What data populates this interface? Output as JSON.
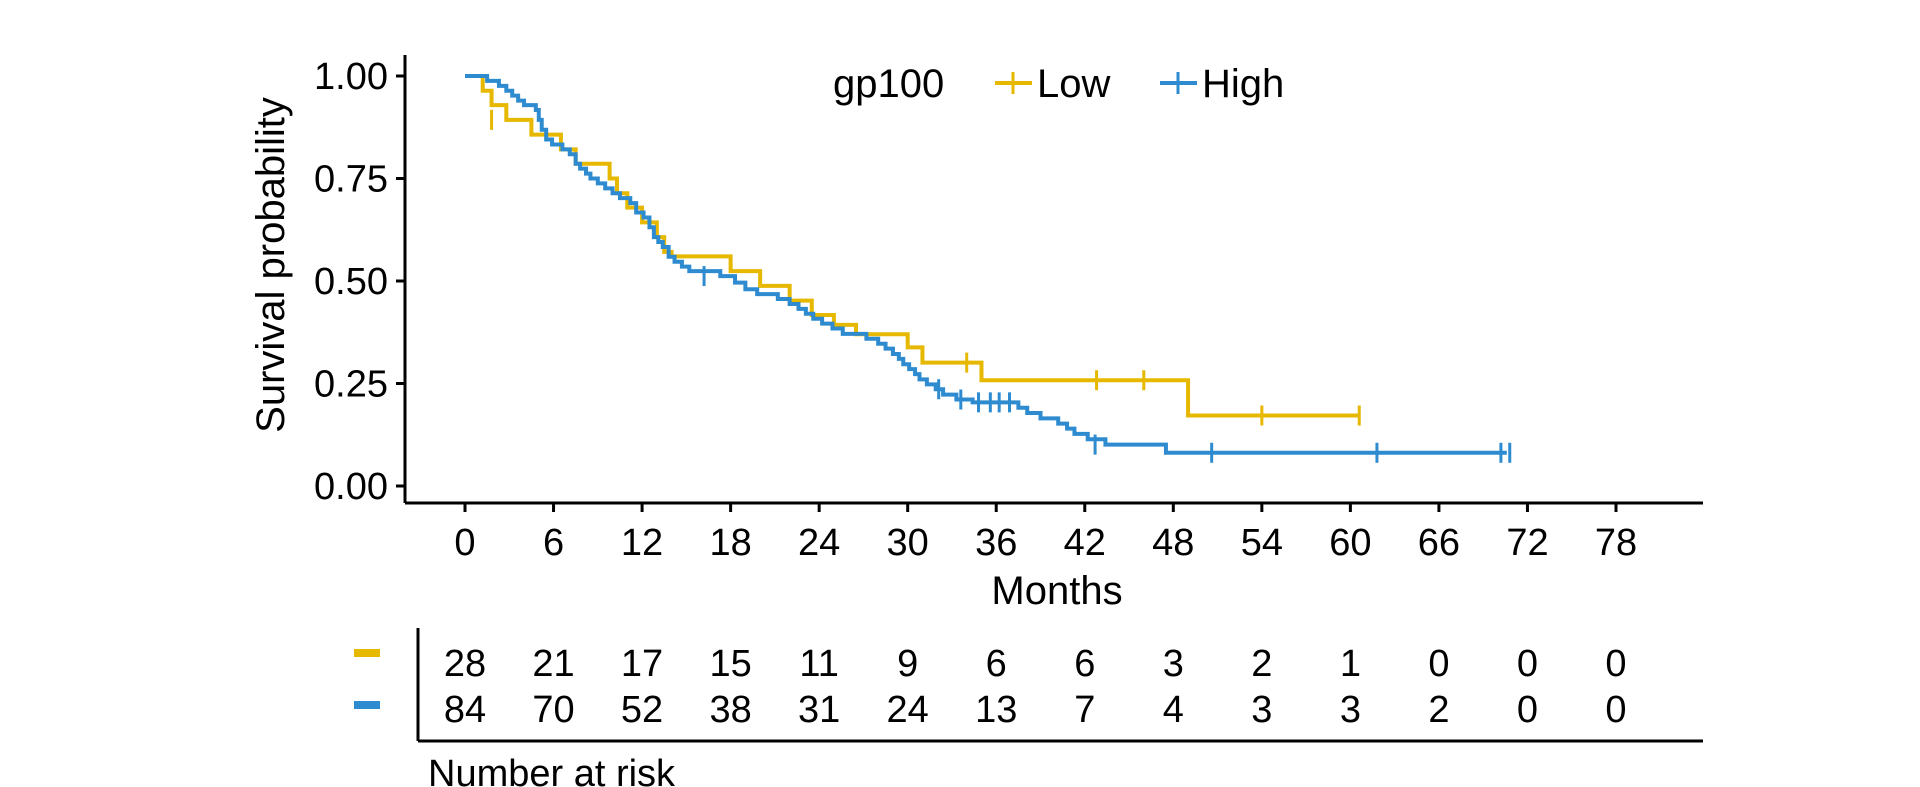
{
  "colors": {
    "low": "#E7B800",
    "high": "#2E8BCF",
    "axis": "#000000"
  },
  "chart_data": {
    "type": "line",
    "subtype": "kaplan-meier step",
    "xlabel": "Months",
    "ylabel": "Survival probability",
    "xlim": [
      0,
      78
    ],
    "ylim": [
      0,
      1
    ],
    "x_ticks": [
      0,
      6,
      12,
      18,
      24,
      30,
      36,
      42,
      48,
      54,
      60,
      66,
      72,
      78
    ],
    "y_ticks": [
      "0.00",
      "0.25",
      "0.50",
      "0.75",
      "1.00"
    ],
    "legend": {
      "title": "gp100",
      "placement": "top-center"
    },
    "series": [
      {
        "name": "Low",
        "color_key": "low",
        "steps": [
          [
            0,
            1.0
          ],
          [
            1.2,
            0.964
          ],
          [
            1.8,
            0.929
          ],
          [
            2.8,
            0.893
          ],
          [
            4.5,
            0.857
          ],
          [
            6.5,
            0.821
          ],
          [
            7.5,
            0.786
          ],
          [
            9.8,
            0.75
          ],
          [
            10.3,
            0.714
          ],
          [
            11.0,
            0.679
          ],
          [
            12.0,
            0.643
          ],
          [
            13.0,
            0.607
          ],
          [
            13.5,
            0.571
          ],
          [
            14.0,
            0.56
          ],
          [
            18.0,
            0.524
          ],
          [
            20.0,
            0.488
          ],
          [
            22.0,
            0.452
          ],
          [
            23.5,
            0.417
          ],
          [
            25.0,
            0.393
          ],
          [
            26.5,
            0.37
          ],
          [
            30.0,
            0.338
          ],
          [
            31.0,
            0.301
          ],
          [
            35.0,
            0.258
          ],
          [
            49.0,
            0.172
          ],
          [
            60.6,
            0.172
          ]
        ],
        "censored": [
          [
            1.8,
            0.893
          ],
          [
            34.0,
            0.301
          ],
          [
            42.8,
            0.258
          ],
          [
            46.0,
            0.258
          ],
          [
            54.0,
            0.172
          ],
          [
            60.6,
            0.172
          ]
        ]
      },
      {
        "name": "High",
        "color_key": "high",
        "steps": [
          [
            0,
            1.0
          ],
          [
            1.5,
            0.988
          ],
          [
            2.3,
            0.976
          ],
          [
            2.8,
            0.964
          ],
          [
            3.2,
            0.952
          ],
          [
            3.6,
            0.94
          ],
          [
            4.0,
            0.929
          ],
          [
            4.8,
            0.917
          ],
          [
            5.0,
            0.893
          ],
          [
            5.2,
            0.869
          ],
          [
            5.5,
            0.845
          ],
          [
            5.9,
            0.833
          ],
          [
            6.6,
            0.821
          ],
          [
            7.1,
            0.809
          ],
          [
            7.5,
            0.786
          ],
          [
            7.8,
            0.774
          ],
          [
            8.2,
            0.762
          ],
          [
            8.5,
            0.75
          ],
          [
            9.0,
            0.738
          ],
          [
            9.5,
            0.726
          ],
          [
            10.0,
            0.714
          ],
          [
            10.5,
            0.702
          ],
          [
            11.2,
            0.69
          ],
          [
            11.6,
            0.667
          ],
          [
            12.1,
            0.655
          ],
          [
            12.5,
            0.631
          ],
          [
            12.8,
            0.607
          ],
          [
            13.1,
            0.595
          ],
          [
            13.4,
            0.583
          ],
          [
            13.8,
            0.559
          ],
          [
            14.2,
            0.547
          ],
          [
            14.7,
            0.535
          ],
          [
            15.2,
            0.524
          ],
          [
            17.3,
            0.512
          ],
          [
            18.3,
            0.496
          ],
          [
            19.0,
            0.48
          ],
          [
            19.8,
            0.468
          ],
          [
            21.2,
            0.456
          ],
          [
            22.0,
            0.444
          ],
          [
            22.6,
            0.432
          ],
          [
            23.1,
            0.42
          ],
          [
            23.6,
            0.408
          ],
          [
            24.2,
            0.396
          ],
          [
            24.9,
            0.384
          ],
          [
            25.6,
            0.371
          ],
          [
            27.2,
            0.359
          ],
          [
            28.0,
            0.347
          ],
          [
            28.5,
            0.335
          ],
          [
            29.0,
            0.322
          ],
          [
            29.4,
            0.31
          ],
          [
            29.7,
            0.297
          ],
          [
            30.1,
            0.285
          ],
          [
            30.5,
            0.273
          ],
          [
            30.8,
            0.26
          ],
          [
            31.3,
            0.248
          ],
          [
            31.9,
            0.236
          ],
          [
            32.4,
            0.223
          ],
          [
            33.3,
            0.211
          ],
          [
            34.4,
            0.204
          ],
          [
            37.5,
            0.191
          ],
          [
            38.1,
            0.178
          ],
          [
            39.0,
            0.165
          ],
          [
            40.2,
            0.152
          ],
          [
            40.8,
            0.14
          ],
          [
            41.3,
            0.127
          ],
          [
            42.2,
            0.114
          ],
          [
            43.4,
            0.101
          ],
          [
            47.5,
            0.081
          ],
          [
            70.6,
            0.081
          ]
        ],
        "censored": [
          [
            16.2,
            0.512
          ],
          [
            32.1,
            0.236
          ],
          [
            33.6,
            0.211
          ],
          [
            34.8,
            0.204
          ],
          [
            35.6,
            0.204
          ],
          [
            36.2,
            0.204
          ],
          [
            36.9,
            0.204
          ],
          [
            42.7,
            0.101
          ],
          [
            50.6,
            0.081
          ],
          [
            61.8,
            0.081
          ],
          [
            70.2,
            0.081
          ],
          [
            70.8,
            0.081
          ]
        ]
      }
    ],
    "risk_table": {
      "title": "Number at risk",
      "times": [
        0,
        6,
        12,
        18,
        24,
        30,
        36,
        42,
        48,
        54,
        60,
        66,
        72,
        78
      ],
      "rows": [
        {
          "color_key": "low",
          "values": [
            "28",
            "21",
            "17",
            "15",
            "11",
            "9",
            "6",
            "6",
            "3",
            "2",
            "1",
            "0",
            "0",
            "0"
          ]
        },
        {
          "color_key": "high",
          "values": [
            "84",
            "70",
            "52",
            "38",
            "31",
            "24",
            "13",
            "7",
            "4",
            "3",
            "3",
            "2",
            "0",
            "0"
          ]
        }
      ]
    }
  }
}
